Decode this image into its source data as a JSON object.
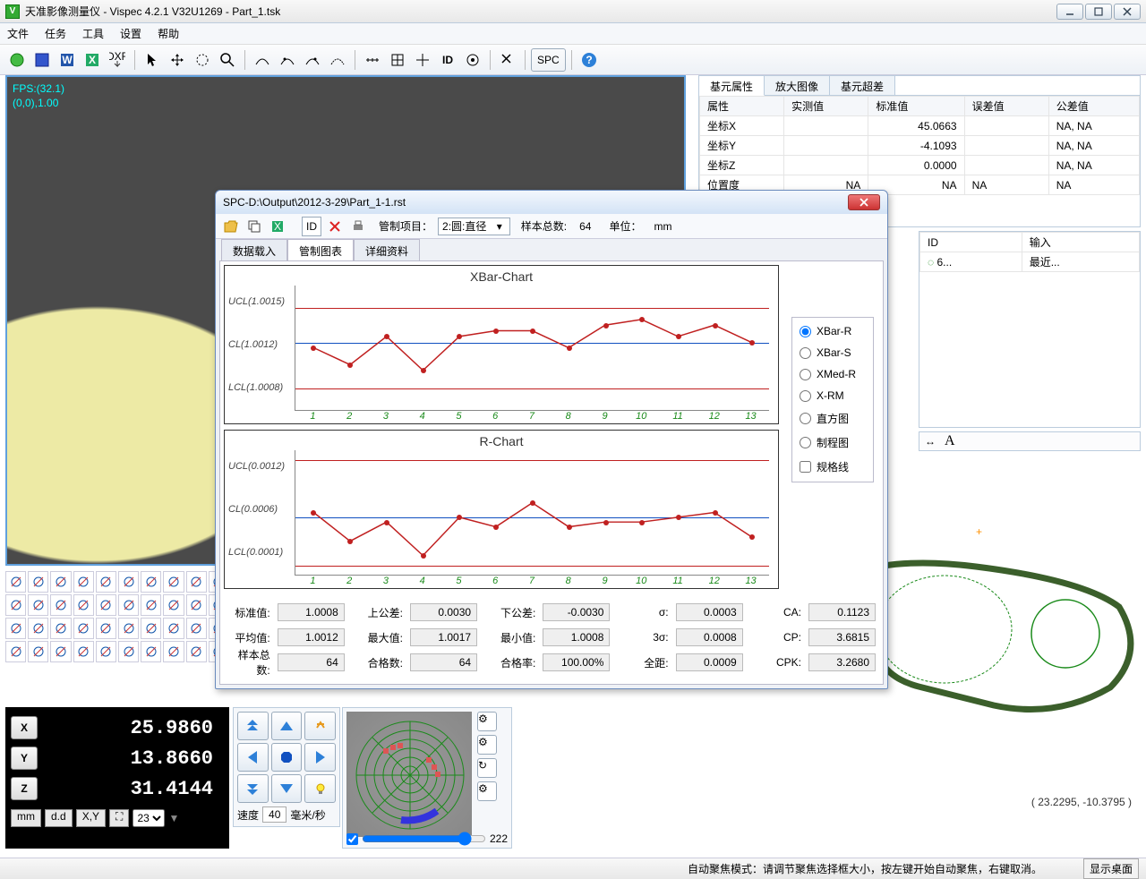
{
  "window": {
    "title": "天准影像测量仪 - Vispec 4.2.1 V32U1269  -  Part_1.tsk"
  },
  "menu": {
    "file": "文件",
    "task": "任务",
    "tool": "工具",
    "setting": "设置",
    "help": "帮助"
  },
  "main_toolbar": {
    "spc_label": "SPC",
    "id_label": "ID"
  },
  "camera_overlay": {
    "line1": "FPS:(32.1)",
    "line2": "(0,0),1.00"
  },
  "prop_tabs": {
    "t1": "基元属性",
    "t2": "放大图像",
    "t3": "基元超差"
  },
  "prop_headers": {
    "c1": "属性",
    "c2": "实测值",
    "c3": "标准值",
    "c4": "误差值",
    "c5": "公差值"
  },
  "prop_rows": [
    {
      "name": "坐标X",
      "meas": "",
      "std": "45.0663",
      "err": "",
      "tol": "NA, NA"
    },
    {
      "name": "坐标Y",
      "meas": "",
      "std": "-4.1093",
      "err": "",
      "tol": "NA, NA"
    },
    {
      "name": "坐标Z",
      "meas": "",
      "std": "0.0000",
      "err": "",
      "tol": "NA, NA"
    },
    {
      "name": "位置度",
      "meas": "NA",
      "std": "NA",
      "err": "NA",
      "tol": "NA"
    }
  ],
  "id_panel": {
    "h1": "ID",
    "h2": "输入",
    "row1_id": "6...",
    "row1_in": "最近..."
  },
  "coords": {
    "x": "25.9860",
    "y": "13.8660",
    "z": "31.4144"
  },
  "coord_footer": {
    "mm": "mm",
    "dd": "d.d",
    "xy": "X,Y",
    "sel": "23"
  },
  "motion": {
    "speed_label": "速度",
    "speed_val": "40",
    "speed_unit": "毫米/秒"
  },
  "target": {
    "slider_val": "222"
  },
  "cursor_coord": "( 23.2295, -10.3795 )",
  "statusbar": {
    "msg": "自动聚焦模式：请调节聚焦选择框大小，按左键开始自动聚焦，右键取消。",
    "desktop": "显示桌面"
  },
  "spc": {
    "title": "SPC-D:\\Output\\2012-3-29\\Part_1-1.rst",
    "tb": {
      "ctrl_item_label": "管制项目：",
      "ctrl_item_val": "2:圆:直径",
      "sample_total_label": "样本总数:",
      "sample_total_val": "64",
      "unit_label": "单位：",
      "unit_val": "mm"
    },
    "tabs": {
      "t1": "数据载入",
      "t2": "管制图表",
      "t3": "详细资料"
    },
    "ctrl_types": {
      "r1": "XBar-R",
      "r2": "XBar-S",
      "r3": "XMed-R",
      "r4": "X-RM",
      "r5": "直方图",
      "r6": "制程图",
      "chk": "规格线"
    },
    "xbar": {
      "title": "XBar-Chart",
      "ucl_label": "UCL(1.0015)",
      "cl_label": "CL(1.0012)",
      "lcl_label": "LCL(1.0008)",
      "ucl": 1.0015,
      "cl": 1.0012,
      "lcl": 1.0008,
      "ymin": 1.0006,
      "ymax": 1.0017,
      "x_labels": [
        "1",
        "2",
        "3",
        "4",
        "5",
        "6",
        "7",
        "8",
        "9",
        "10",
        "11",
        "12",
        "13"
      ],
      "values": [
        1.00115,
        1.001,
        1.00125,
        1.00095,
        1.00125,
        1.0013,
        1.0013,
        1.00115,
        1.00135,
        1.0014,
        1.00125,
        1.00135,
        1.0012
      ],
      "line_color": "#c02020",
      "cl_color": "#1050c0",
      "limit_color": "#c02020"
    },
    "rchart": {
      "title": "R-Chart",
      "ucl_label": "UCL(0.0012)",
      "cl_label": "CL(0.0006)",
      "lcl_label": "LCL(0.0001)",
      "ucl": 0.0012,
      "cl": 0.0006,
      "lcl": 0.0001,
      "ymin": 0.0,
      "ymax": 0.0013,
      "x_labels": [
        "1",
        "2",
        "3",
        "4",
        "5",
        "6",
        "7",
        "8",
        "9",
        "10",
        "11",
        "12",
        "13"
      ],
      "values": [
        0.00065,
        0.00035,
        0.00055,
        0.0002,
        0.0006,
        0.0005,
        0.00075,
        0.0005,
        0.00055,
        0.00055,
        0.0006,
        0.00065,
        0.0004
      ],
      "line_color": "#c02020",
      "cl_color": "#1050c0",
      "limit_color": "#c02020"
    },
    "stats": {
      "row1": {
        "l1": "标准值:",
        "v1": "1.0008",
        "l2": "上公差:",
        "v2": "0.0030",
        "l3": "下公差:",
        "v3": "-0.0030",
        "l4": "σ:",
        "v4": "0.0003",
        "l5": "CA:",
        "v5": "0.1123"
      },
      "row2": {
        "l1": "平均值:",
        "v1": "1.0012",
        "l2": "最大值:",
        "v2": "1.0017",
        "l3": "最小值:",
        "v3": "1.0008",
        "l4": "3σ:",
        "v4": "0.0008",
        "l5": "CP:",
        "v5": "3.6815"
      },
      "row3": {
        "l1": "样本总数:",
        "v1": "64",
        "l2": "合格数:",
        "v2": "64",
        "l3": "合格率:",
        "v3": "100.00%",
        "l4": "全距:",
        "v4": "0.0009",
        "l5": "CPK:",
        "v5": "3.2680"
      }
    }
  },
  "colors": {
    "accent": "#60a0dd",
    "chart_line": "#c02020",
    "chart_cl": "#1050c0"
  }
}
